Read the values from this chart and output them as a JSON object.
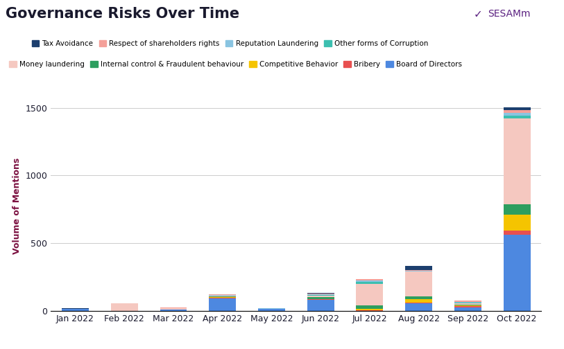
{
  "title": "Governance Risks Over Time",
  "ylabel": "Volume of Mentions",
  "months": [
    "Jan 2022",
    "Feb 2022",
    "Mar 2022",
    "Apr 2022",
    "May 2022",
    "Jun 2022",
    "Jul 2022",
    "Aug 2022",
    "Sep 2022",
    "Oct 2022"
  ],
  "categories_row1": [
    "Tax Avoidance",
    "Respect of shareholders rights",
    "Reputation Laundering",
    "Other forms of Corruption"
  ],
  "categories_row2": [
    "Money laundering",
    "Internal control & Fraudulent behaviour",
    "Competitive Behavior",
    "Bribery",
    "Board of Directors"
  ],
  "stack_order": [
    "Board of Directors",
    "Bribery",
    "Competitive Behavior",
    "Internal control & Fraudulent behaviour",
    "Money laundering",
    "Other forms of Corruption",
    "Reputation Laundering",
    "Respect of shareholders rights",
    "Tax Avoidance"
  ],
  "colors": {
    "Tax Avoidance": "#1c3f6e",
    "Respect of shareholders rights": "#f4a099",
    "Reputation Laundering": "#89c4e1",
    "Other forms of Corruption": "#3cbfb0",
    "Money laundering": "#f5c8c0",
    "Internal control & Fraudulent behaviour": "#2d9e5f",
    "Competitive Behavior": "#f5c400",
    "Bribery": "#e85050",
    "Board of Directors": "#4d88e0"
  },
  "data": {
    "Tax Avoidance": [
      2,
      0,
      0,
      2,
      0,
      3,
      2,
      30,
      4,
      20
    ],
    "Respect of shareholders rights": [
      0,
      0,
      5,
      5,
      3,
      8,
      10,
      5,
      8,
      20
    ],
    "Reputation Laundering": [
      0,
      0,
      0,
      3,
      2,
      5,
      12,
      3,
      6,
      20
    ],
    "Other forms of Corruption": [
      0,
      0,
      0,
      3,
      0,
      5,
      12,
      0,
      5,
      20
    ],
    "Money laundering": [
      0,
      55,
      10,
      5,
      0,
      8,
      160,
      185,
      10,
      640
    ],
    "Internal control & Fraudulent behaviour": [
      0,
      0,
      0,
      5,
      0,
      18,
      25,
      20,
      6,
      75
    ],
    "Competitive Behavior": [
      0,
      0,
      0,
      5,
      0,
      0,
      12,
      28,
      5,
      120
    ],
    "Bribery": [
      0,
      0,
      0,
      3,
      2,
      3,
      3,
      3,
      8,
      30
    ],
    "Board of Directors": [
      15,
      0,
      10,
      90,
      12,
      80,
      0,
      55,
      25,
      560
    ]
  },
  "ylim": [
    0,
    1550
  ],
  "yticks": [
    0,
    500,
    1000,
    1500
  ],
  "background_color": "#ffffff",
  "title_color": "#1a1a2e",
  "title_fontsize": 15,
  "axis_label_color": "#7b1040",
  "tick_label_color": "#1a1a2e",
  "grid_color": "#cccccc",
  "logo_text": "SESAMm",
  "logo_color": "#5a2080"
}
